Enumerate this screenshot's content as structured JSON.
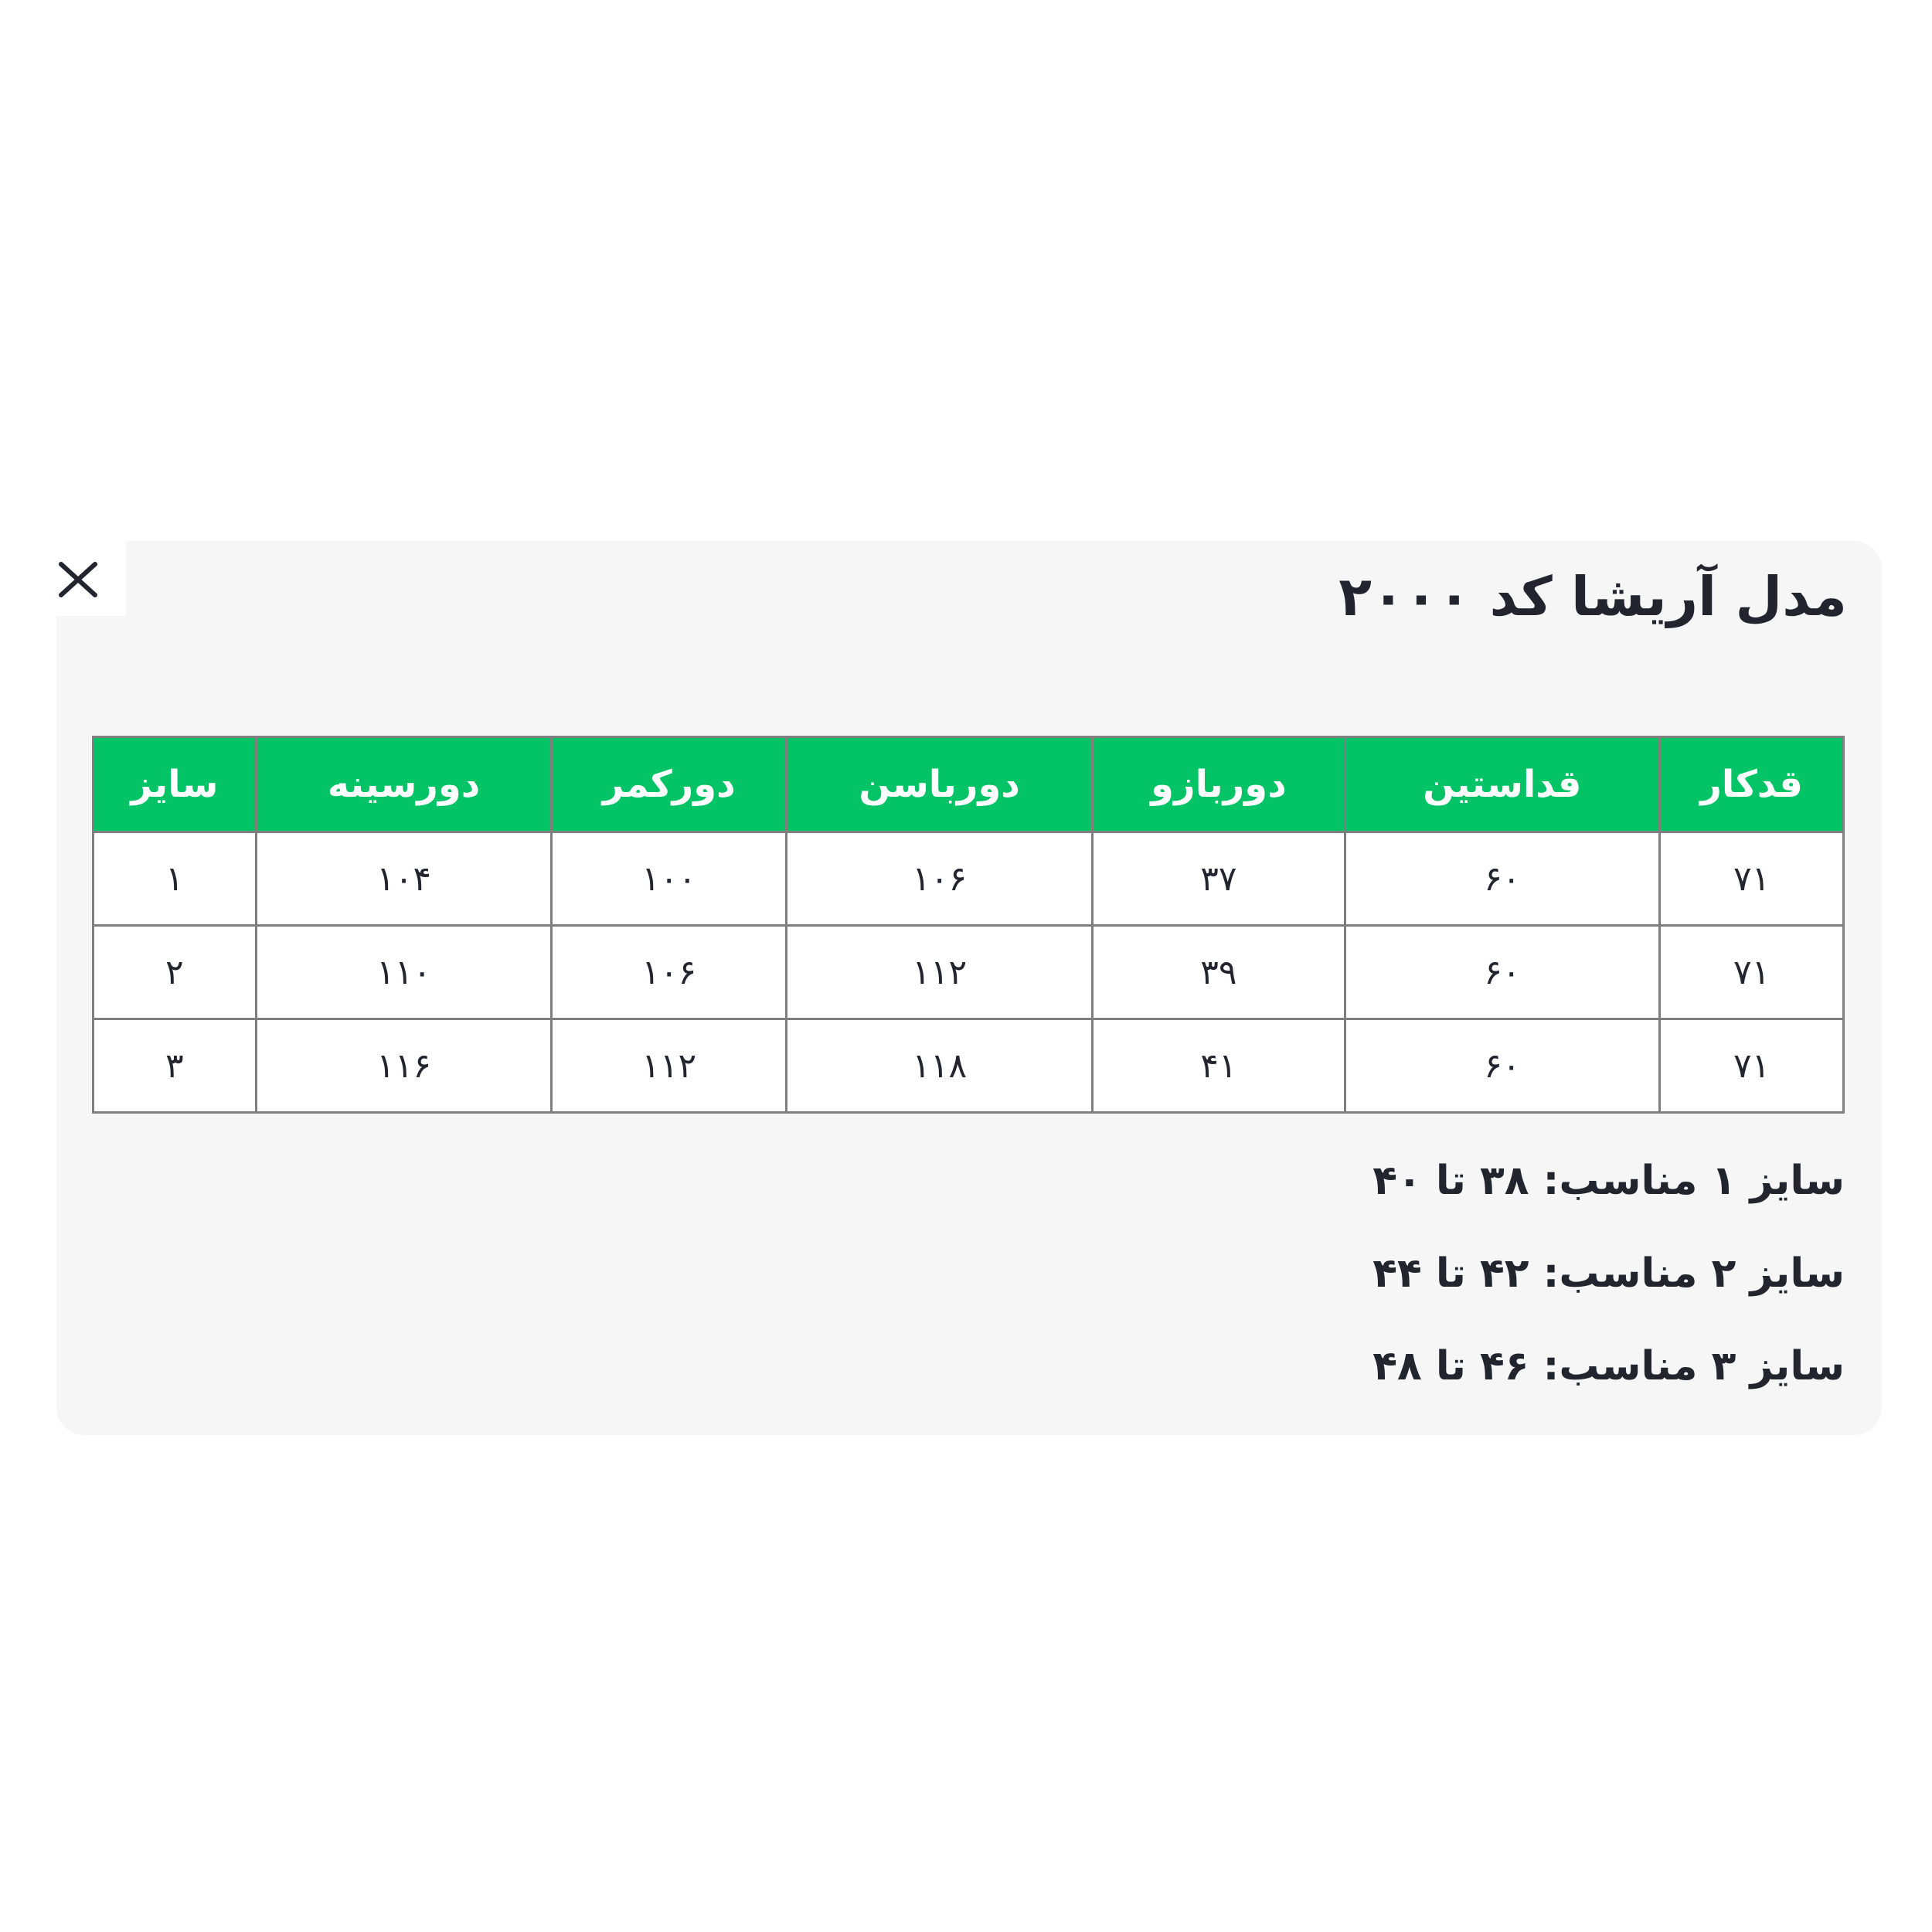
{
  "modal": {
    "title": "مدل آریشا کد ۲۰۰۰",
    "colors": {
      "page_bg": "#ffffff",
      "panel_bg": "#f6f6f7",
      "header_green": "#02c365",
      "header_text": "#ffffff",
      "border_gray": "#7f7f7f",
      "text_dark": "#22242e"
    },
    "close_icon": "close-icon"
  },
  "size_table": {
    "columns": [
      "قدکار",
      "قداستین",
      "دوربازو",
      "دورباسن",
      "دورکمر",
      "دورسینه",
      "سایز"
    ],
    "rows": [
      [
        "۷۱",
        "۶۰",
        "۳۷",
        "۱۰۶",
        "۱۰۰",
        "۱۰۴",
        "۱"
      ],
      [
        "۷۱",
        "۶۰",
        "۳۹",
        "۱۱۲",
        "۱۰۶",
        "۱۱۰",
        "۲"
      ],
      [
        "۷۱",
        "۶۰",
        "۴۱",
        "۱۱۸",
        "۱۱۲",
        "۱۱۶",
        "۳"
      ]
    ]
  },
  "notes": [
    "سایز ۱ مناسب: ۳۸ تا ۴۰",
    "سایز ۲ مناسب: ۴۲ تا ۴۴",
    "سایز ۳ مناسب: ۴۶ تا ۴۸"
  ]
}
